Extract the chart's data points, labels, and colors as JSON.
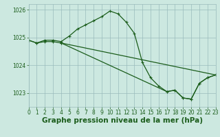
{
  "xlabel": "Graphe pression niveau de la mer (hPa)",
  "background_color": "#cce8e0",
  "grid_color": "#99bbbb",
  "line_color": "#1a5c1a",
  "marker": "+",
  "x_ticks": [
    0,
    1,
    2,
    3,
    4,
    5,
    6,
    7,
    8,
    9,
    10,
    11,
    12,
    13,
    14,
    15,
    16,
    17,
    18,
    19,
    20,
    21,
    22,
    23
  ],
  "xlim": [
    0,
    23
  ],
  "ylim": [
    1022.5,
    1026.2
  ],
  "yticks": [
    1023,
    1024,
    1025,
    1026
  ],
  "series": [
    {
      "x": [
        0,
        1,
        2,
        3,
        4,
        5,
        6,
        7,
        8,
        9,
        10,
        11,
        12,
        13,
        14,
        15,
        16,
        17,
        18,
        19,
        20,
        21,
        22,
        23
      ],
      "y": [
        1024.9,
        1024.8,
        1024.9,
        1024.9,
        1024.85,
        1025.05,
        1025.3,
        1025.45,
        1025.6,
        1025.75,
        1025.95,
        1025.85,
        1025.55,
        1025.15,
        1024.1,
        1023.55,
        1023.25,
        1023.05,
        1023.1,
        1022.82,
        1022.78,
        1023.35,
        1023.55,
        1023.65
      ]
    },
    {
      "x": [
        0,
        1,
        2,
        3,
        4,
        23
      ],
      "y": [
        1024.9,
        1024.8,
        1024.85,
        1024.85,
        1024.8,
        1023.65
      ]
    },
    {
      "x": [
        4,
        17,
        18,
        19,
        20,
        21,
        22,
        23
      ],
      "y": [
        1024.8,
        1023.05,
        1023.1,
        1022.82,
        1022.78,
        1023.35,
        1023.55,
        1023.65
      ]
    }
  ],
  "tick_fontsize": 5.5,
  "xlabel_fontsize": 7.5,
  "marker_size": 3,
  "line_width": 0.9
}
